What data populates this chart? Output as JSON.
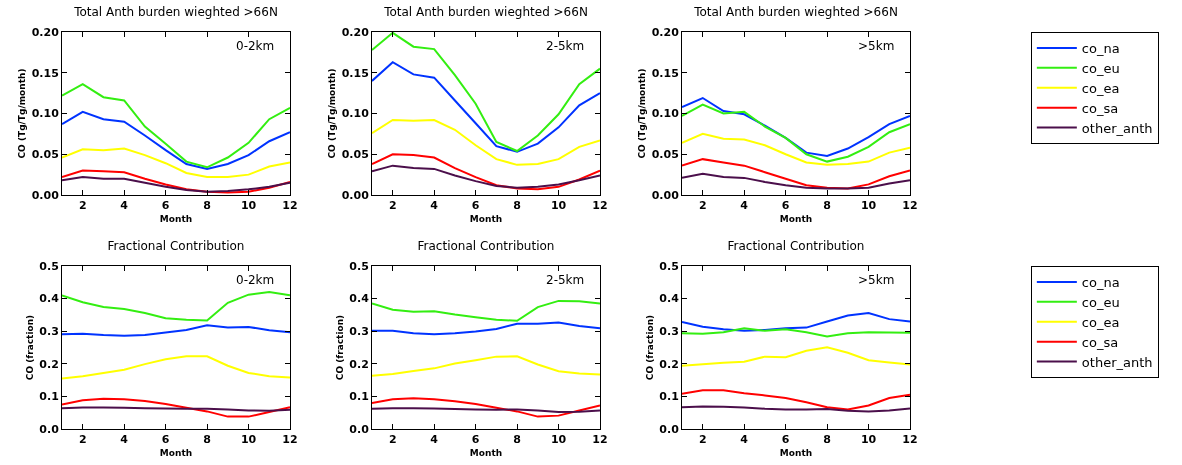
{
  "chart_data": [
    {
      "type": "line",
      "title": "Total Anth burden wieghted >66N",
      "xlabel": "Month",
      "ylabel": "CO (Tg/Tg/month)",
      "annotations": [
        "0-2km"
      ],
      "x": [
        1,
        2,
        3,
        4,
        5,
        6,
        7,
        8,
        9,
        10,
        11,
        12
      ],
      "xlim": [
        1,
        12
      ],
      "xticks": [
        2,
        4,
        6,
        8,
        10,
        12
      ],
      "ylim": [
        0,
        0.2
      ],
      "yticks": [
        {
          "value": 0,
          "label": "0.00"
        },
        {
          "value": 0.05,
          "label": "0.05"
        },
        {
          "value": 0.1,
          "label": "0.10"
        },
        {
          "value": 0.15,
          "label": "0.15"
        },
        {
          "value": 0.2,
          "label": "0.20"
        }
      ],
      "series": [
        {
          "color": "#0033ff",
          "values": [
            0.087,
            0.102,
            0.093,
            0.09,
            0.073,
            0.055,
            0.038,
            0.032,
            0.038,
            0.049,
            0.066,
            0.077
          ]
        },
        {
          "color": "#33ee11",
          "values": [
            0.122,
            0.136,
            0.12,
            0.116,
            0.084,
            0.063,
            0.041,
            0.034,
            0.046,
            0.064,
            0.093,
            0.107
          ]
        },
        {
          "color": "#ffff00",
          "values": [
            0.046,
            0.056,
            0.055,
            0.057,
            0.049,
            0.039,
            0.027,
            0.022,
            0.022,
            0.025,
            0.035,
            0.04
          ]
        },
        {
          "color": "#ff0000",
          "values": [
            0.022,
            0.03,
            0.029,
            0.028,
            0.02,
            0.013,
            0.007,
            0.004,
            0.003,
            0.004,
            0.009,
            0.016
          ]
        },
        {
          "color": "#4b0f4b",
          "values": [
            0.018,
            0.022,
            0.02,
            0.02,
            0.015,
            0.01,
            0.006,
            0.004,
            0.005,
            0.007,
            0.01,
            0.015
          ]
        }
      ]
    },
    {
      "type": "line",
      "title": "Total Anth burden wieghted >66N",
      "xlabel": "Month",
      "ylabel": "CO (Tg/Tg/month)",
      "annotations": [
        "2-5km"
      ],
      "x": [
        1,
        2,
        3,
        4,
        5,
        6,
        7,
        8,
        9,
        10,
        11,
        12
      ],
      "xlim": [
        1,
        12
      ],
      "xticks": [
        2,
        4,
        6,
        8,
        10,
        12
      ],
      "ylim": [
        0,
        0.2
      ],
      "yticks": [
        {
          "value": 0,
          "label": "0.00"
        },
        {
          "value": 0.05,
          "label": "0.05"
        },
        {
          "value": 0.1,
          "label": "0.10"
        },
        {
          "value": 0.15,
          "label": "0.15"
        },
        {
          "value": 0.2,
          "label": "0.20"
        }
      ],
      "series": [
        {
          "color": "#0033ff",
          "values": [
            0.14,
            0.163,
            0.148,
            0.144,
            0.116,
            0.088,
            0.06,
            0.053,
            0.063,
            0.083,
            0.11,
            0.125
          ]
        },
        {
          "color": "#33ee11",
          "values": [
            0.178,
            0.199,
            0.182,
            0.179,
            0.147,
            0.112,
            0.065,
            0.054,
            0.073,
            0.099,
            0.136,
            0.155
          ]
        },
        {
          "color": "#ffff00",
          "values": [
            0.076,
            0.092,
            0.091,
            0.092,
            0.08,
            0.061,
            0.044,
            0.037,
            0.038,
            0.044,
            0.059,
            0.067
          ]
        },
        {
          "color": "#ff0000",
          "values": [
            0.038,
            0.05,
            0.049,
            0.046,
            0.033,
            0.022,
            0.012,
            0.008,
            0.007,
            0.01,
            0.019,
            0.03
          ]
        },
        {
          "color": "#4b0f4b",
          "values": [
            0.029,
            0.036,
            0.033,
            0.032,
            0.024,
            0.017,
            0.011,
            0.009,
            0.01,
            0.013,
            0.018,
            0.024
          ]
        }
      ]
    },
    {
      "type": "line",
      "title": "Total Anth burden wieghted >66N",
      "xlabel": "Month",
      "ylabel": "CO (Tg/Tg/month)",
      "annotations": [
        ">5km"
      ],
      "legend": "right",
      "x": [
        1,
        2,
        3,
        4,
        5,
        6,
        7,
        8,
        9,
        10,
        11,
        12
      ],
      "xlim": [
        1,
        12
      ],
      "xticks": [
        2,
        4,
        6,
        8,
        10,
        12
      ],
      "ylim": [
        0,
        0.2
      ],
      "yticks": [
        {
          "value": 0,
          "label": "0.00"
        },
        {
          "value": 0.05,
          "label": "0.05"
        },
        {
          "value": 0.1,
          "label": "0.10"
        },
        {
          "value": 0.15,
          "label": "0.15"
        },
        {
          "value": 0.2,
          "label": "0.20"
        }
      ],
      "series": [
        {
          "name": "co_na",
          "color": "#0033ff",
          "values": [
            0.108,
            0.119,
            0.103,
            0.099,
            0.085,
            0.07,
            0.052,
            0.048,
            0.057,
            0.071,
            0.087,
            0.097
          ]
        },
        {
          "name": "co_eu",
          "color": "#33ee11",
          "values": [
            0.097,
            0.111,
            0.1,
            0.102,
            0.084,
            0.07,
            0.05,
            0.041,
            0.047,
            0.059,
            0.077,
            0.087
          ]
        },
        {
          "name": "co_ea",
          "color": "#ffff00",
          "values": [
            0.064,
            0.075,
            0.069,
            0.068,
            0.061,
            0.05,
            0.04,
            0.037,
            0.038,
            0.041,
            0.052,
            0.058
          ]
        },
        {
          "name": "co_sa",
          "color": "#ff0000",
          "values": [
            0.036,
            0.044,
            0.04,
            0.036,
            0.028,
            0.02,
            0.012,
            0.009,
            0.008,
            0.013,
            0.023,
            0.03
          ]
        },
        {
          "name": "other_anth",
          "color": "#4b0f4b",
          "values": [
            0.021,
            0.026,
            0.022,
            0.021,
            0.016,
            0.012,
            0.009,
            0.008,
            0.008,
            0.009,
            0.014,
            0.018
          ]
        }
      ]
    },
    {
      "type": "line",
      "title": "Fractional Contribution",
      "xlabel": "Month",
      "ylabel": "CO (fraction)",
      "annotations": [
        "0-2km"
      ],
      "x": [
        1,
        2,
        3,
        4,
        5,
        6,
        7,
        8,
        9,
        10,
        11,
        12
      ],
      "xlim": [
        1,
        12
      ],
      "xticks": [
        2,
        4,
        6,
        8,
        10,
        12
      ],
      "ylim": [
        0,
        0.5
      ],
      "yticks": [
        {
          "value": 0,
          "label": "0.0"
        },
        0.1,
        0.2,
        0.3,
        0.4,
        0.5
      ],
      "series": [
        {
          "color": "#0033ff",
          "values": [
            0.291,
            0.292,
            0.288,
            0.286,
            0.288,
            0.296,
            0.304,
            0.318,
            0.311,
            0.313,
            0.303,
            0.297
          ]
        },
        {
          "color": "#33ee11",
          "values": [
            0.41,
            0.389,
            0.374,
            0.368,
            0.356,
            0.34,
            0.335,
            0.333,
            0.387,
            0.412,
            0.42,
            0.41
          ]
        },
        {
          "color": "#ffff00",
          "values": [
            0.155,
            0.162,
            0.172,
            0.182,
            0.199,
            0.214,
            0.223,
            0.223,
            0.194,
            0.172,
            0.162,
            0.158
          ]
        },
        {
          "color": "#ff0000",
          "values": [
            0.075,
            0.088,
            0.093,
            0.091,
            0.086,
            0.077,
            0.065,
            0.054,
            0.038,
            0.038,
            0.052,
            0.067
          ]
        },
        {
          "color": "#4b0f4b",
          "values": [
            0.064,
            0.066,
            0.066,
            0.065,
            0.064,
            0.063,
            0.062,
            0.062,
            0.06,
            0.057,
            0.056,
            0.059
          ]
        }
      ]
    },
    {
      "type": "line",
      "title": "Fractional Contribution",
      "xlabel": "Month",
      "ylabel": "CO (fraction)",
      "annotations": [
        "2-5km"
      ],
      "x": [
        1,
        2,
        3,
        4,
        5,
        6,
        7,
        8,
        9,
        10,
        11,
        12
      ],
      "xlim": [
        1,
        12
      ],
      "xticks": [
        2,
        4,
        6,
        8,
        10,
        12
      ],
      "ylim": [
        0,
        0.5
      ],
      "yticks": [
        {
          "value": 0,
          "label": "0.0"
        },
        0.1,
        0.2,
        0.3,
        0.4,
        0.5
      ],
      "series": [
        {
          "color": "#0033ff",
          "values": [
            0.301,
            0.301,
            0.294,
            0.291,
            0.294,
            0.299,
            0.307,
            0.323,
            0.323,
            0.327,
            0.316,
            0.309
          ]
        },
        {
          "color": "#33ee11",
          "values": [
            0.385,
            0.366,
            0.36,
            0.361,
            0.351,
            0.343,
            0.335,
            0.332,
            0.374,
            0.393,
            0.392,
            0.385
          ]
        },
        {
          "color": "#ffff00",
          "values": [
            0.163,
            0.169,
            0.178,
            0.186,
            0.201,
            0.211,
            0.222,
            0.223,
            0.198,
            0.177,
            0.17,
            0.167
          ]
        },
        {
          "color": "#ff0000",
          "values": [
            0.08,
            0.091,
            0.094,
            0.091,
            0.085,
            0.077,
            0.065,
            0.054,
            0.038,
            0.041,
            0.057,
            0.072
          ]
        },
        {
          "color": "#4b0f4b",
          "values": [
            0.062,
            0.064,
            0.064,
            0.063,
            0.061,
            0.06,
            0.059,
            0.06,
            0.057,
            0.052,
            0.053,
            0.057
          ]
        }
      ]
    },
    {
      "type": "line",
      "title": "Fractional Contribution",
      "xlabel": "Month",
      "ylabel": "CO (fraction)",
      "annotations": [
        ">5km"
      ],
      "legend": "right",
      "x": [
        1,
        2,
        3,
        4,
        5,
        6,
        7,
        8,
        9,
        10,
        11,
        12
      ],
      "xlim": [
        1,
        12
      ],
      "xticks": [
        2,
        4,
        6,
        8,
        10,
        12
      ],
      "ylim": [
        0,
        0.5
      ],
      "yticks": [
        {
          "value": 0,
          "label": "0.0"
        },
        0.1,
        0.2,
        0.3,
        0.4,
        0.5
      ],
      "series": [
        {
          "name": "co_na",
          "color": "#0033ff",
          "values": [
            0.328,
            0.314,
            0.306,
            0.301,
            0.304,
            0.309,
            0.311,
            0.33,
            0.348,
            0.356,
            0.337,
            0.33
          ]
        },
        {
          "name": "co_eu",
          "color": "#33ee11",
          "values": [
            0.294,
            0.292,
            0.297,
            0.309,
            0.301,
            0.306,
            0.297,
            0.284,
            0.294,
            0.297,
            0.296,
            0.295
          ]
        },
        {
          "name": "co_ea",
          "color": "#ffff00",
          "values": [
            0.194,
            0.199,
            0.203,
            0.206,
            0.222,
            0.22,
            0.24,
            0.251,
            0.234,
            0.211,
            0.204,
            0.198
          ]
        },
        {
          "name": "co_sa",
          "color": "#ff0000",
          "values": [
            0.108,
            0.119,
            0.119,
            0.11,
            0.103,
            0.095,
            0.082,
            0.067,
            0.06,
            0.072,
            0.095,
            0.105
          ]
        },
        {
          "name": "other_anth",
          "color": "#4b0f4b",
          "values": [
            0.067,
            0.069,
            0.068,
            0.066,
            0.062,
            0.06,
            0.06,
            0.061,
            0.056,
            0.054,
            0.057,
            0.063
          ]
        }
      ]
    }
  ]
}
